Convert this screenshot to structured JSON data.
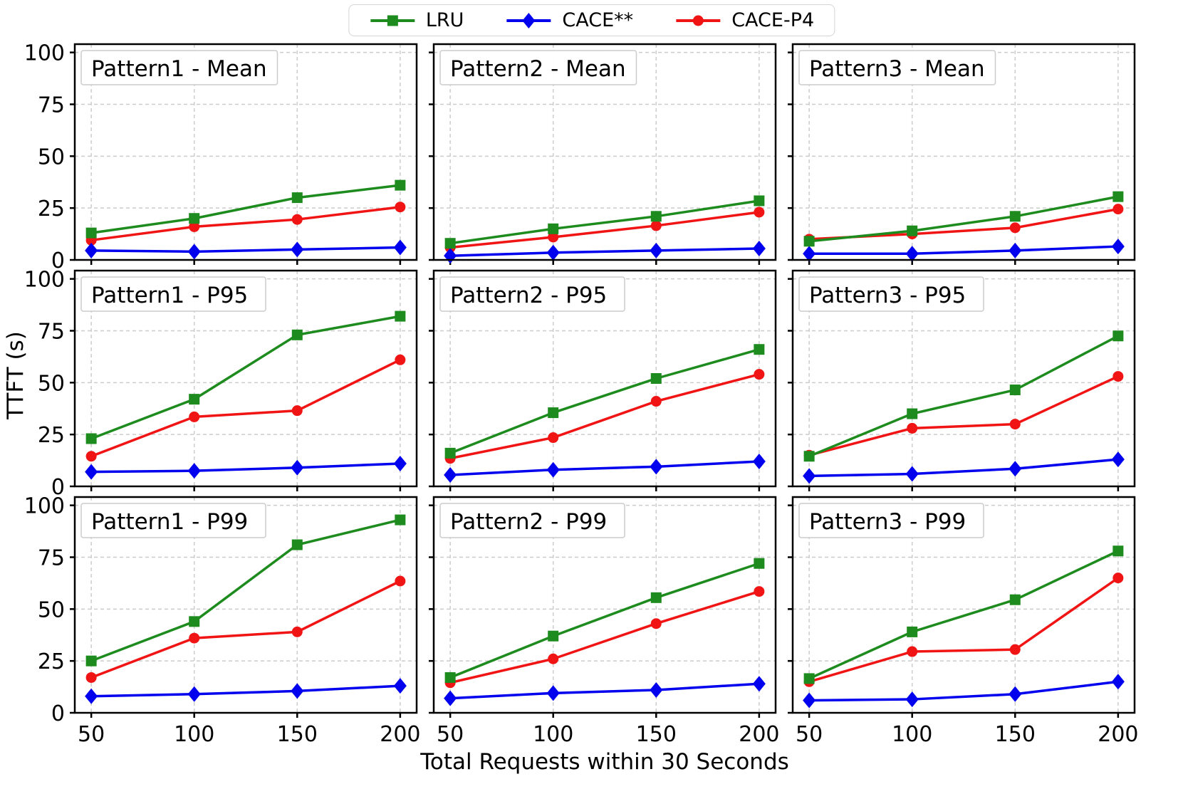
{
  "figure": {
    "background": "#ffffff",
    "grid_color": "#cccccc",
    "spine_color": "#000000"
  },
  "legend": {
    "items": [
      {
        "label": "LRU",
        "color": "#1d8b1d",
        "marker": "square"
      },
      {
        "label": "CACE**",
        "color": "#0000ee",
        "marker": "diamond"
      },
      {
        "label": "CACE-P4",
        "color": "#f01414",
        "marker": "circle"
      }
    ]
  },
  "chart_data": {
    "type": "line",
    "grid": true,
    "legend_position": "top-center-outside",
    "xlabel": "Total Requests within 30 Seconds",
    "ylabel": "TTFT (s)",
    "x": [
      50,
      100,
      150,
      200
    ],
    "xticks": [
      50,
      100,
      150,
      200
    ],
    "yticks": [
      0,
      25,
      50,
      75,
      100
    ],
    "xlim": [
      42,
      208
    ],
    "ylim": [
      0,
      104
    ],
    "panels": [
      {
        "title": "Pattern1 - Mean",
        "series": [
          {
            "name": "LRU",
            "values": [
              13,
              20,
              30,
              36
            ]
          },
          {
            "name": "CACE**",
            "values": [
              4.5,
              4,
              5,
              6
            ]
          },
          {
            "name": "CACE-P4",
            "values": [
              9.5,
              16,
              19.5,
              25.5
            ]
          }
        ]
      },
      {
        "title": "Pattern2 - Mean",
        "series": [
          {
            "name": "LRU",
            "values": [
              8,
              15,
              21,
              28.5
            ]
          },
          {
            "name": "CACE**",
            "values": [
              2,
              3.5,
              4.5,
              5.5
            ]
          },
          {
            "name": "CACE-P4",
            "values": [
              6,
              11,
              16.5,
              23
            ]
          }
        ]
      },
      {
        "title": "Pattern3 - Mean",
        "series": [
          {
            "name": "LRU",
            "values": [
              9,
              14,
              21,
              30.5
            ]
          },
          {
            "name": "CACE**",
            "values": [
              3,
              3,
              4.5,
              6.5
            ]
          },
          {
            "name": "CACE-P4",
            "values": [
              10,
              12.5,
              15.5,
              24.5
            ]
          }
        ]
      },
      {
        "title": "Pattern1 - P95",
        "series": [
          {
            "name": "LRU",
            "values": [
              23,
              42,
              73,
              82
            ]
          },
          {
            "name": "CACE**",
            "values": [
              7,
              7.5,
              9,
              11
            ]
          },
          {
            "name": "CACE-P4",
            "values": [
              14.5,
              33.5,
              36.5,
              61
            ]
          }
        ]
      },
      {
        "title": "Pattern2 - P95",
        "series": [
          {
            "name": "LRU",
            "values": [
              16,
              35.5,
              52,
              66
            ]
          },
          {
            "name": "CACE**",
            "values": [
              5.5,
              8,
              9.5,
              12
            ]
          },
          {
            "name": "CACE-P4",
            "values": [
              13.5,
              23.5,
              41,
              54
            ]
          }
        ]
      },
      {
        "title": "Pattern3 - P95",
        "series": [
          {
            "name": "LRU",
            "values": [
              14.5,
              35,
              46.5,
              72.5
            ]
          },
          {
            "name": "CACE**",
            "values": [
              5,
              6,
              8.5,
              13
            ]
          },
          {
            "name": "CACE-P4",
            "values": [
              15,
              28,
              30,
              53
            ]
          }
        ]
      },
      {
        "title": "Pattern1 - P99",
        "series": [
          {
            "name": "LRU",
            "values": [
              25,
              44,
              81,
              93
            ]
          },
          {
            "name": "CACE**",
            "values": [
              8,
              9,
              10.5,
              13
            ]
          },
          {
            "name": "CACE-P4",
            "values": [
              17,
              36,
              39,
              63.5
            ]
          }
        ]
      },
      {
        "title": "Pattern2 - P99",
        "series": [
          {
            "name": "LRU",
            "values": [
              17,
              37,
              55.5,
              72
            ]
          },
          {
            "name": "CACE**",
            "values": [
              7,
              9.5,
              11,
              14
            ]
          },
          {
            "name": "CACE-P4",
            "values": [
              14.5,
              26,
              43,
              58.5
            ]
          }
        ]
      },
      {
        "title": "Pattern3 - P99",
        "series": [
          {
            "name": "LRU",
            "values": [
              16.5,
              39,
              54.5,
              78
            ]
          },
          {
            "name": "CACE**",
            "values": [
              6,
              6.5,
              9,
              15
            ]
          },
          {
            "name": "CACE-P4",
            "values": [
              15,
              29.5,
              30.5,
              65
            ]
          }
        ]
      }
    ]
  }
}
